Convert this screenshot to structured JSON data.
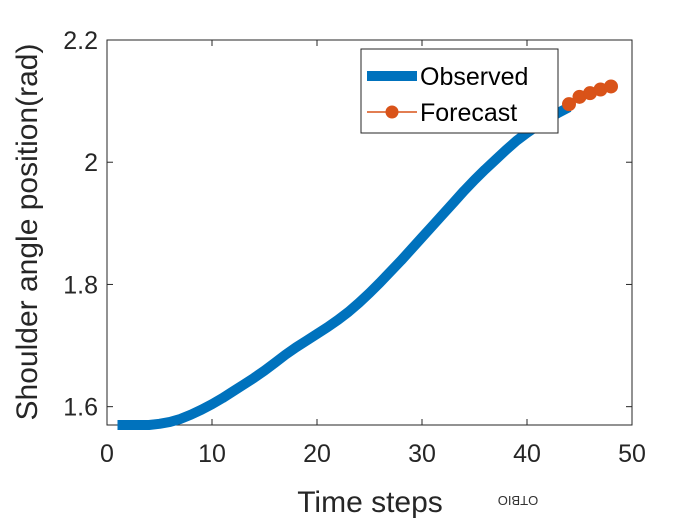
{
  "chart_data": {
    "type": "line",
    "xlabel": "Time steps",
    "ylabel": "Shoulder angle position(rad)",
    "xlim": [
      0,
      50
    ],
    "ylim": [
      1.57,
      2.2
    ],
    "xticks": [
      0,
      10,
      20,
      30,
      40,
      50
    ],
    "xtick_labels": [
      "0",
      "10",
      "20",
      "30",
      "40",
      "50"
    ],
    "yticks": [
      1.6,
      1.8,
      2.0,
      2.2
    ],
    "ytick_labels": [
      "1.6",
      "1.8",
      "2",
      "2.2"
    ],
    "grid": false,
    "legend_position": "top-right",
    "series": [
      {
        "name": "Observed",
        "color": "#0072BD",
        "style": "thick-line",
        "x": [
          1,
          2,
          3,
          4,
          5,
          6,
          7,
          8,
          9,
          10,
          11,
          12,
          13,
          14,
          15,
          16,
          17,
          18,
          19,
          20,
          21,
          22,
          23,
          24,
          25,
          26,
          27,
          28,
          29,
          30,
          31,
          32,
          33,
          34,
          35,
          36,
          37,
          38,
          39,
          40,
          41,
          42,
          43,
          44
        ],
        "y": [
          1.57,
          1.57,
          1.57,
          1.57,
          1.572,
          1.575,
          1.58,
          1.587,
          1.595,
          1.604,
          1.614,
          1.625,
          1.636,
          1.647,
          1.659,
          1.672,
          1.685,
          1.697,
          1.708,
          1.719,
          1.73,
          1.742,
          1.755,
          1.77,
          1.786,
          1.803,
          1.821,
          1.839,
          1.858,
          1.877,
          1.896,
          1.915,
          1.934,
          1.953,
          1.971,
          1.988,
          2.004,
          2.02,
          2.035,
          2.048,
          2.06,
          2.071,
          2.081,
          2.09
        ]
      },
      {
        "name": "Forecast",
        "color": "#D95319",
        "style": "line-with-dots",
        "x": [
          44,
          45,
          46,
          47,
          48
        ],
        "y": [
          2.095,
          2.107,
          2.113,
          2.119,
          2.124
        ]
      }
    ]
  },
  "watermark": {
    "text": "OTBIO"
  }
}
